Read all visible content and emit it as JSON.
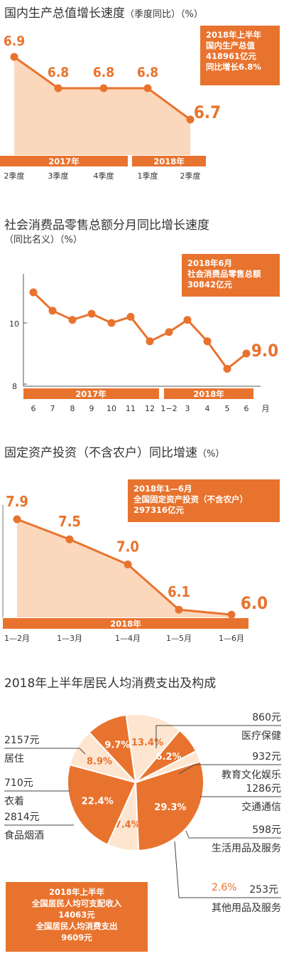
{
  "colors": {
    "accent": "#e8732e",
    "fill": "#fbd7bc",
    "light": "#fde5cf",
    "text": "#333333"
  },
  "gdp": {
    "title": "国内生产总值增长速度",
    "title_sub": "（季度同比）（%）",
    "box": [
      "2018年上半年",
      "国内生产总值",
      "418961亿元",
      "同比增长6.8%"
    ],
    "years": [
      "2017年",
      "2018年"
    ]
  },
  "retail": {
    "title": "社会消费品零售总额分月同比增长速度",
    "subtitle": "（同比名义）（%）",
    "box": [
      "2018年6月",
      "社会消费品零售总额",
      "30842亿元"
    ],
    "years": [
      "2017年",
      "2018年"
    ],
    "month_unit": "月",
    "y_ticks": [
      "10",
      "8"
    ]
  },
  "fai": {
    "title": "固定资产投资（不含农户）同比增速",
    "title_sub": "（%）",
    "box": [
      "2018年1—6月",
      "全国固定资产投资（不含农户）",
      "297316亿元"
    ],
    "years": [
      "2018年"
    ]
  },
  "spend": {
    "title": "2018年上半年居民人均消费支出及构成",
    "box": [
      "2018年上半年",
      "全国居民人均可支配收入",
      "14063元",
      "全国居民人均消费支出",
      "9609元"
    ]
  },
  "chart_data": [
    {
      "type": "line",
      "title": "国内生产总值增长速度（季度同比）（%）",
      "categories": [
        "2季度",
        "3季度",
        "4季度",
        "1季度",
        "2季度"
      ],
      "values": [
        6.9,
        6.8,
        6.8,
        6.8,
        6.7
      ],
      "labels": [
        "6.9",
        "6.8",
        "6.8",
        "6.8",
        "6.7"
      ],
      "groups": [
        {
          "name": "2017年",
          "span": [
            0,
            2
          ]
        },
        {
          "name": "2018年",
          "span": [
            3,
            4
          ]
        }
      ]
    },
    {
      "type": "line",
      "title": "社会消费品零售总额分月同比增长速度（同比名义）（%）",
      "categories": [
        "6",
        "7",
        "8",
        "9",
        "10",
        "11",
        "12",
        "1−2",
        "3",
        "4",
        "5",
        "6"
      ],
      "values": [
        11.0,
        10.4,
        10.1,
        10.3,
        10.0,
        10.2,
        9.4,
        9.7,
        10.1,
        9.4,
        8.5,
        9.0
      ],
      "end_label": "9.0",
      "ylim": [
        8,
        11.6
      ],
      "y_ticks": [
        10,
        8
      ],
      "groups": [
        {
          "name": "2017年",
          "span": [
            0,
            6
          ]
        },
        {
          "name": "2018年",
          "span": [
            7,
            11
          ]
        }
      ]
    },
    {
      "type": "area",
      "title": "固定资产投资（不含农户）同比增速（%）",
      "categories": [
        "1—2月",
        "1—3月",
        "1—4月",
        "1—5月",
        "1—6月"
      ],
      "values": [
        7.9,
        7.5,
        7.0,
        6.1,
        6.0
      ],
      "labels": [
        "7.9",
        "7.5",
        "7.0",
        "6.1",
        "6.0"
      ],
      "groups": [
        {
          "name": "2018年",
          "span": [
            0,
            4
          ]
        }
      ]
    },
    {
      "type": "pie",
      "title": "2018年上半年居民人均消费支出及构成",
      "slices": [
        {
          "name": "医疗保健",
          "value": 860,
          "value_label": "860元",
          "pct": 8.9,
          "pct_label": "8.9%",
          "color": "#fde5cf"
        },
        {
          "name": "教育文化娱乐",
          "value": 932,
          "value_label": "932元",
          "pct": 9.7,
          "pct_label": "9.7%",
          "color": "#e8732e"
        },
        {
          "name": "交通通信",
          "value": 1286,
          "value_label": "1286元",
          "pct": 13.4,
          "pct_label": "13.4%",
          "color": "#fde5cf"
        },
        {
          "name": "生活用品及服务",
          "value": 598,
          "value_label": "598元",
          "pct": 6.2,
          "pct_label": "6.2%",
          "color": "#e8732e"
        },
        {
          "name": "其他用品及服务",
          "value": 253,
          "value_label": "253元",
          "pct": 2.6,
          "pct_label": "2.6%",
          "color": "#fde5cf"
        },
        {
          "name": "食品烟酒",
          "value": 2814,
          "value_label": "2814元",
          "pct": 29.3,
          "pct_label": "29.3%",
          "color": "#e8732e"
        },
        {
          "name": "衣着",
          "value": 710,
          "value_label": "710元",
          "pct": 7.4,
          "pct_label": "7.4%",
          "color": "#fde5cf"
        },
        {
          "name": "居住",
          "value": 2157,
          "value_label": "2157元",
          "pct": 22.4,
          "pct_label": "22.4%",
          "color": "#e8732e"
        }
      ]
    }
  ]
}
